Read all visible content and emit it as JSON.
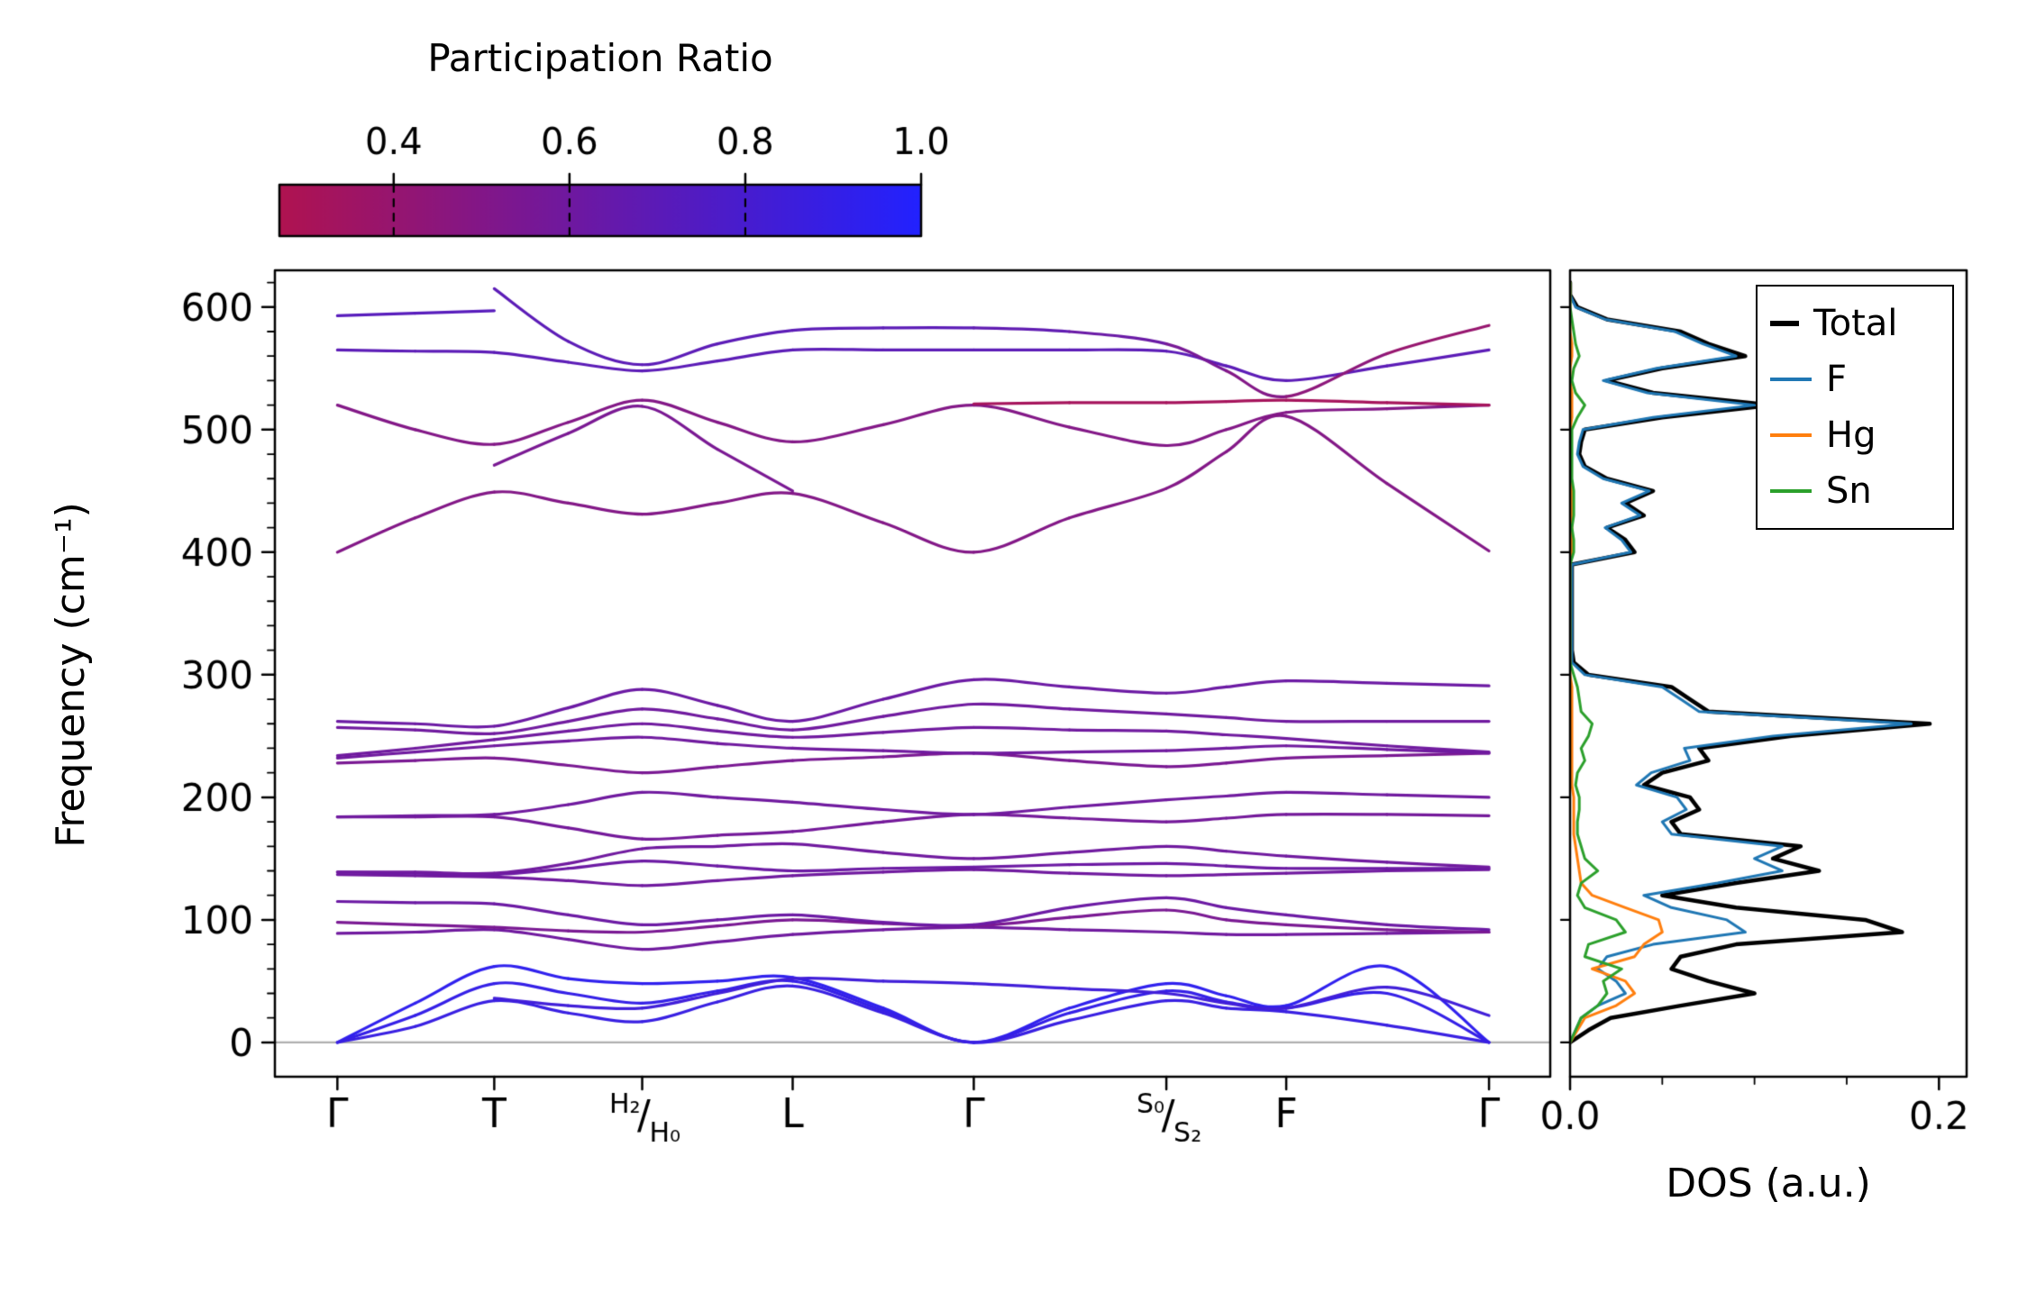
{
  "colorbar": {
    "title": "Participation Ratio",
    "vmin": 0.27,
    "vmax": 1.0,
    "ticks": [
      0.4,
      0.6,
      0.8,
      1.0
    ],
    "tick_labels": [
      "0.4",
      "0.6",
      "0.8",
      "1.0"
    ],
    "color_stops": [
      "#b01350",
      "#8c167c",
      "#6819a8",
      "#441dd3",
      "#2222ff"
    ]
  },
  "chart_data": [
    {
      "type": "line",
      "id": "phonon-band-structure",
      "ylabel": "Frequency (cm⁻¹)",
      "ylim": [
        -28,
        630
      ],
      "yticks": [
        0,
        100,
        200,
        300,
        400,
        500,
        600
      ],
      "zero_line_color": "#b0b0b0",
      "line_width": 3.2,
      "kpoints": [
        {
          "label": "Γ",
          "x": 0.049
        },
        {
          "label": "T",
          "x": 0.172
        },
        {
          "label": "H₂/H₀",
          "top": "H₂",
          "bottom": "H₀",
          "x": 0.288
        },
        {
          "label": "L",
          "x": 0.406
        },
        {
          "label": "Γ",
          "x": 0.548
        },
        {
          "label": "S₀/S₂",
          "top": "S₀",
          "bottom": "S₂",
          "x": 0.699
        },
        {
          "label": "F",
          "x": 0.793
        },
        {
          "label": "Γ",
          "x": 0.952
        }
      ],
      "xgrid": [
        0.049,
        0.11,
        0.172,
        0.23,
        0.288,
        0.347,
        0.406,
        0.477,
        0.548,
        0.623,
        0.699,
        0.746,
        0.793,
        0.872,
        0.952
      ],
      "bands": [
        {
          "x": null,
          "y": [
            0,
            32,
            62,
            52,
            48,
            50,
            53,
            28,
            0,
            28,
            48,
            38,
            30,
            62,
            0
          ],
          "pr": 0.93
        },
        {
          "x": null,
          "y": [
            0,
            22,
            48,
            40,
            32,
            42,
            50,
            26,
            0,
            24,
            42,
            33,
            28,
            40,
            0
          ],
          "pr": 0.9
        },
        {
          "x": null,
          "y": [
            0,
            13,
            34,
            24,
            17,
            33,
            46,
            24,
            0,
            18,
            34,
            28,
            25,
            14,
            0
          ],
          "pr": 0.88
        },
        {
          "x": [
            0.172,
            0.23,
            0.288,
            0.347,
            0.406,
            0.477,
            0.548,
            0.623,
            0.699,
            0.746,
            0.793,
            0.872,
            0.952
          ],
          "y": [
            36,
            30,
            28,
            40,
            52,
            50,
            48,
            44,
            40,
            32,
            28,
            45,
            22
          ],
          "pr": 0.84
        },
        {
          "x": null,
          "y": [
            89,
            90,
            92,
            84,
            76,
            82,
            88,
            92,
            94,
            92,
            90,
            88,
            88,
            89,
            90
          ],
          "pr": 0.6
        },
        {
          "x": null,
          "y": [
            98,
            96,
            94,
            91,
            90,
            95,
            100,
            97,
            95,
            102,
            108,
            100,
            96,
            92,
            90
          ],
          "pr": 0.55
        },
        {
          "x": null,
          "y": [
            115,
            114,
            113,
            104,
            96,
            100,
            104,
            98,
            96,
            110,
            118,
            110,
            104,
            96,
            92
          ],
          "pr": 0.62
        },
        {
          "x": null,
          "y": [
            137,
            136,
            135,
            132,
            128,
            132,
            136,
            139,
            141,
            138,
            136,
            137,
            138,
            140,
            141
          ],
          "pr": 0.6
        },
        {
          "x": null,
          "y": [
            139,
            138,
            137,
            142,
            148,
            144,
            140,
            142,
            143,
            145,
            146,
            144,
            142,
            142,
            142
          ],
          "pr": 0.62
        },
        {
          "x": null,
          "y": [
            139,
            139,
            138,
            146,
            158,
            160,
            162,
            155,
            150,
            155,
            160,
            156,
            152,
            147,
            143
          ],
          "pr": 0.6
        },
        {
          "x": null,
          "y": [
            184,
            184,
            184,
            175,
            166,
            169,
            172,
            180,
            186,
            183,
            180,
            183,
            186,
            186,
            185
          ],
          "pr": 0.58
        },
        {
          "x": null,
          "y": [
            184,
            185,
            186,
            194,
            204,
            200,
            196,
            190,
            186,
            192,
            198,
            201,
            204,
            202,
            200
          ],
          "pr": 0.6
        },
        {
          "x": null,
          "y": [
            228,
            230,
            232,
            226,
            220,
            225,
            230,
            233,
            236,
            230,
            225,
            228,
            232,
            234,
            236
          ],
          "pr": 0.55
        },
        {
          "x": null,
          "y": [
            232,
            237,
            242,
            246,
            249,
            244,
            240,
            238,
            236,
            237,
            238,
            240,
            242,
            239,
            236
          ],
          "pr": 0.6
        },
        {
          "x": null,
          "y": [
            234,
            240,
            247,
            254,
            260,
            254,
            249,
            253,
            257,
            255,
            254,
            251,
            248,
            242,
            237
          ],
          "pr": 0.6
        },
        {
          "x": null,
          "y": [
            257,
            255,
            252,
            262,
            272,
            264,
            255,
            266,
            276,
            272,
            268,
            265,
            262,
            262,
            262
          ],
          "pr": 0.6
        },
        {
          "x": null,
          "y": [
            262,
            260,
            258,
            273,
            288,
            275,
            262,
            280,
            296,
            290,
            285,
            290,
            295,
            293,
            291
          ],
          "pr": 0.62
        },
        {
          "x": null,
          "y": [
            400,
            428,
            449,
            440,
            431,
            440,
            448,
            424,
            400,
            428,
            452,
            482,
            511,
            456,
            401
          ],
          "pr": 0.5
        },
        {
          "x": [
            0.172,
            0.23,
            0.288,
            0.347,
            0.406
          ],
          "y": [
            471,
            497,
            519,
            484,
            450
          ],
          "pr": 0.55
        },
        {
          "x": null,
          "y": [
            520,
            500,
            488,
            506,
            524,
            506,
            490,
            504,
            520,
            502,
            487,
            500,
            514,
            517,
            520
          ],
          "pr": 0.5
        },
        {
          "x": [
            0.548,
            0.623,
            0.699,
            0.746,
            0.793,
            0.872,
            0.952
          ],
          "y": [
            521,
            522,
            522,
            523,
            524,
            522,
            520
          ],
          "pr": 0.32
        },
        {
          "x": null,
          "y": [
            565,
            564,
            563,
            555,
            548,
            556,
            565,
            565,
            565,
            565,
            564,
            552,
            540,
            552,
            565
          ],
          "pr": 0.7
        },
        {
          "x": [
            0.049,
            0.11,
            0.172
          ],
          "y": [
            593,
            595,
            597
          ],
          "pr": 0.72
        },
        {
          "x": [
            0.172,
            0.23,
            0.288,
            0.347,
            0.406,
            0.477,
            0.548,
            0.623,
            0.699,
            0.746,
            0.793,
            0.872,
            0.952
          ],
          "y": [
            615,
            572,
            553,
            570,
            581,
            583,
            583,
            580,
            570,
            548,
            527,
            562,
            585
          ],
          "pr": [
            0.7,
            0.7,
            0.7,
            0.7,
            0.7,
            0.7,
            0.7,
            0.66,
            0.6,
            0.52,
            0.48,
            0.42,
            0.38
          ]
        }
      ]
    },
    {
      "type": "line",
      "id": "dos",
      "xlabel": "DOS (a.u.)",
      "xlim": [
        0,
        0.215
      ],
      "xticks": [
        0.0,
        0.2
      ],
      "xtick_labels": [
        "0.0",
        "0.2"
      ],
      "xminorticks": [
        0.05,
        0.1,
        0.15
      ],
      "legend": [
        {
          "label": "Total",
          "color": "#000000",
          "lw": 6,
          "sw": 32
        },
        {
          "label": "F",
          "color": "#1f77b4",
          "lw": 4,
          "sw": 46
        },
        {
          "label": "Hg",
          "color": "#ff7f0e",
          "lw": 4,
          "sw": 46
        },
        {
          "label": "Sn",
          "color": "#2ca02c",
          "lw": 4,
          "sw": 46
        }
      ],
      "freq": [
        0,
        10,
        20,
        30,
        40,
        50,
        60,
        70,
        80,
        90,
        100,
        110,
        120,
        130,
        140,
        150,
        160,
        170,
        180,
        190,
        200,
        210,
        220,
        230,
        240,
        250,
        260,
        270,
        280,
        290,
        300,
        310,
        320,
        330,
        340,
        350,
        360,
        370,
        380,
        390,
        400,
        410,
        420,
        430,
        440,
        450,
        460,
        470,
        480,
        490,
        500,
        510,
        520,
        530,
        540,
        550,
        560,
        570,
        580,
        590,
        600,
        610,
        620
      ],
      "series": [
        {
          "name": "Total",
          "color": "#000000",
          "lw": 4.5,
          "values": [
            0,
            0.01,
            0.022,
            0.06,
            0.1,
            0.075,
            0.055,
            0.06,
            0.09,
            0.18,
            0.16,
            0.09,
            0.05,
            0.09,
            0.135,
            0.11,
            0.125,
            0.06,
            0.055,
            0.07,
            0.065,
            0.04,
            0.05,
            0.075,
            0.07,
            0.12,
            0.195,
            0.075,
            0.065,
            0.055,
            0.01,
            0.002,
            0.001,
            0.001,
            0.001,
            0.001,
            0.001,
            0.001,
            0.001,
            0.001,
            0.035,
            0.03,
            0.02,
            0.04,
            0.03,
            0.045,
            0.02,
            0.008,
            0.005,
            0.006,
            0.008,
            0.05,
            0.11,
            0.045,
            0.02,
            0.05,
            0.095,
            0.075,
            0.06,
            0.02,
            0.004,
            0,
            0
          ]
        },
        {
          "name": "F",
          "color": "#1f77b4",
          "lw": 3,
          "values": [
            0,
            0.003,
            0.006,
            0.015,
            0.03,
            0.025,
            0.015,
            0.02,
            0.045,
            0.095,
            0.085,
            0.055,
            0.04,
            0.08,
            0.115,
            0.1,
            0.115,
            0.055,
            0.05,
            0.063,
            0.058,
            0.036,
            0.044,
            0.065,
            0.062,
            0.11,
            0.185,
            0.07,
            0.06,
            0.05,
            0.008,
            0.001,
            0.001,
            0.001,
            0.001,
            0.001,
            0.001,
            0.001,
            0.001,
            0.001,
            0.033,
            0.028,
            0.019,
            0.038,
            0.028,
            0.043,
            0.018,
            0.007,
            0.004,
            0.005,
            0.007,
            0.045,
            0.1,
            0.042,
            0.018,
            0.047,
            0.09,
            0.072,
            0.057,
            0.019,
            0.003,
            0,
            0
          ]
        },
        {
          "name": "Hg",
          "color": "#ff7f0e",
          "lw": 3,
          "values": [
            0,
            0.004,
            0.008,
            0.025,
            0.035,
            0.03,
            0.012,
            0.035,
            0.04,
            0.05,
            0.048,
            0.03,
            0.012,
            0.006,
            0.005,
            0.004,
            0.003,
            0.002,
            0.002,
            0.002,
            0.002,
            0.001,
            0.001,
            0.001,
            0.001,
            0.001,
            0.001,
            0.001,
            0.001,
            0.001,
            0,
            0,
            0,
            0,
            0,
            0,
            0,
            0,
            0,
            0,
            0.001,
            0.001,
            0.001,
            0.001,
            0.001,
            0.001,
            0,
            0,
            0,
            0,
            0,
            0.001,
            0.001,
            0.001,
            0,
            0,
            0.001,
            0.001,
            0,
            0,
            0,
            0,
            0
          ]
        },
        {
          "name": "Sn",
          "color": "#2ca02c",
          "lw": 3,
          "values": [
            0,
            0.003,
            0.006,
            0.015,
            0.02,
            0.018,
            0.028,
            0.008,
            0.01,
            0.03,
            0.025,
            0.008,
            0.004,
            0.006,
            0.015,
            0.008,
            0.006,
            0.004,
            0.004,
            0.005,
            0.005,
            0.003,
            0.004,
            0.008,
            0.006,
            0.01,
            0.012,
            0.006,
            0.005,
            0.004,
            0.002,
            0,
            0,
            0,
            0,
            0,
            0,
            0,
            0,
            0,
            0.002,
            0.002,
            0.001,
            0.002,
            0.002,
            0.002,
            0.001,
            0.001,
            0.001,
            0.001,
            0.001,
            0.004,
            0.008,
            0.003,
            0.001,
            0.002,
            0.005,
            0.003,
            0.002,
            0.001,
            0,
            0,
            0
          ]
        }
      ]
    }
  ]
}
